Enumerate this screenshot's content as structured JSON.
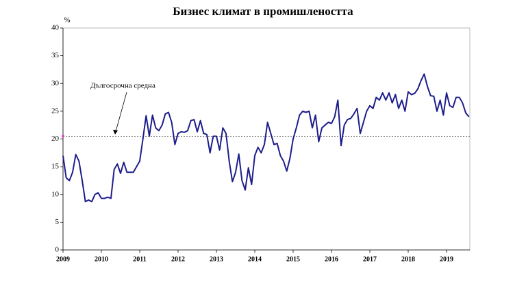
{
  "chart_data": {
    "type": "line",
    "title": "Бизнес климат в промишлеността",
    "y_label": "%",
    "categories": [
      "2009",
      null,
      null,
      null,
      null,
      null,
      null,
      null,
      null,
      null,
      null,
      null,
      "2010",
      null,
      null,
      null,
      null,
      null,
      null,
      null,
      null,
      null,
      null,
      null,
      "2011",
      null,
      null,
      null,
      null,
      null,
      null,
      null,
      null,
      null,
      null,
      null,
      "2012",
      null,
      null,
      null,
      null,
      null,
      null,
      null,
      null,
      null,
      null,
      null,
      "2013",
      null,
      null,
      null,
      null,
      null,
      null,
      null,
      null,
      null,
      null,
      null,
      "2014",
      null,
      null,
      null,
      null,
      null,
      null,
      null,
      null,
      null,
      null,
      null,
      "2015",
      null,
      null,
      null,
      null,
      null,
      null,
      null,
      null,
      null,
      null,
      null,
      "2016",
      null,
      null,
      null,
      null,
      null,
      null,
      null,
      null,
      null,
      null,
      null,
      "2017",
      null,
      null,
      null,
      null,
      null,
      null,
      null,
      null,
      null,
      null,
      null,
      "2018",
      null,
      null,
      null,
      null,
      null,
      null,
      null,
      null,
      null,
      null,
      null,
      "2019",
      null,
      null,
      null,
      null,
      null,
      null,
      null
    ],
    "series": [
      {
        "name": "Бизнес климат",
        "color": "#1c1c8c",
        "values": [
          17,
          13,
          12.5,
          14,
          17.2,
          16,
          12.5,
          8.7,
          9,
          8.7,
          10,
          10.3,
          9.3,
          9.3,
          9.5,
          9.3,
          14.5,
          15.5,
          13.8,
          15.8,
          14,
          14,
          14,
          15,
          16,
          20,
          24.2,
          20.5,
          24.3,
          22,
          21.5,
          22.5,
          24.5,
          24.8,
          23,
          19,
          21,
          21.3,
          21.2,
          21.5,
          23.3,
          23.5,
          21.3,
          23.3,
          21,
          20.8,
          17.5,
          20.5,
          20.5,
          18,
          22,
          21,
          16,
          12.3,
          14,
          17.3,
          12.5,
          10.8,
          14.8,
          11.8,
          17,
          18.5,
          17.5,
          19,
          23,
          21,
          19,
          19.2,
          17,
          16,
          14.2,
          16.5,
          20,
          22,
          24.3,
          25,
          24.8,
          25,
          22,
          24.3,
          19.5,
          22,
          22.5,
          23,
          22.8,
          24,
          27,
          18.8,
          22.5,
          23.5,
          23.7,
          24.5,
          25.5,
          21,
          23,
          25,
          26,
          25.5,
          27.5,
          27,
          28.3,
          27,
          28.3,
          26.5,
          28,
          25.5,
          27,
          25,
          28.5,
          28,
          28.2,
          29,
          30.5,
          31.7,
          29.5,
          27.8,
          27.7,
          25,
          27,
          24.3,
          28.3,
          26,
          25.7,
          27.5,
          27.5,
          26.5,
          24.7,
          24
        ]
      }
    ],
    "reference_line": {
      "value": 20.5,
      "label": "Дългосрочна средна",
      "color": "#555555"
    },
    "ylim": [
      0,
      40
    ],
    "yticks": [
      0,
      5,
      10,
      15,
      20,
      25,
      30,
      35,
      40
    ],
    "grid": false
  }
}
